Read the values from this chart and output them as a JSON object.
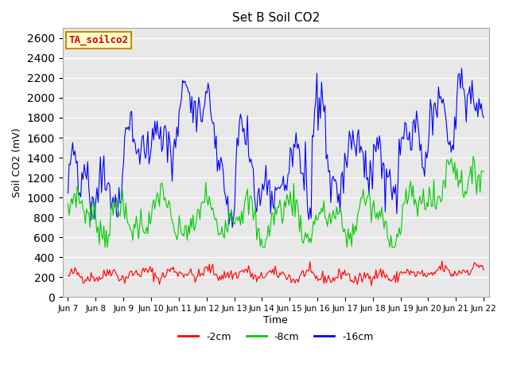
{
  "title": "Set B Soil CO2",
  "ylabel": "Soil CO2 (mV)",
  "xlabel": "Time",
  "ylim": [
    0,
    2700
  ],
  "yticks": [
    0,
    200,
    400,
    600,
    800,
    1000,
    1200,
    1400,
    1600,
    1800,
    2000,
    2200,
    2400,
    2600
  ],
  "xtick_labels": [
    "Jun 7",
    "Jun 8",
    "Jun 9",
    "Jun 10",
    "Jun 11",
    "Jun 12",
    "Jun 13",
    "Jun 14",
    "Jun 15",
    "Jun 16",
    "Jun 17",
    "Jun 18",
    "Jun 19",
    "Jun 20",
    "Jun 21",
    "Jun 22"
  ],
  "annotation_text": "TA_soilco2",
  "annotation_color": "#cc0000",
  "annotation_bg": "#ffffcc",
  "bg_color": "#e8e8e8",
  "legend_entries": [
    "-2cm",
    "-8cm",
    "-16cm"
  ],
  "line_colors": [
    "#ff0000",
    "#00cc00",
    "#0000ff"
  ],
  "seed_red": 42,
  "seed_green": 7,
  "seed_blue": 13,
  "n_points": 360
}
